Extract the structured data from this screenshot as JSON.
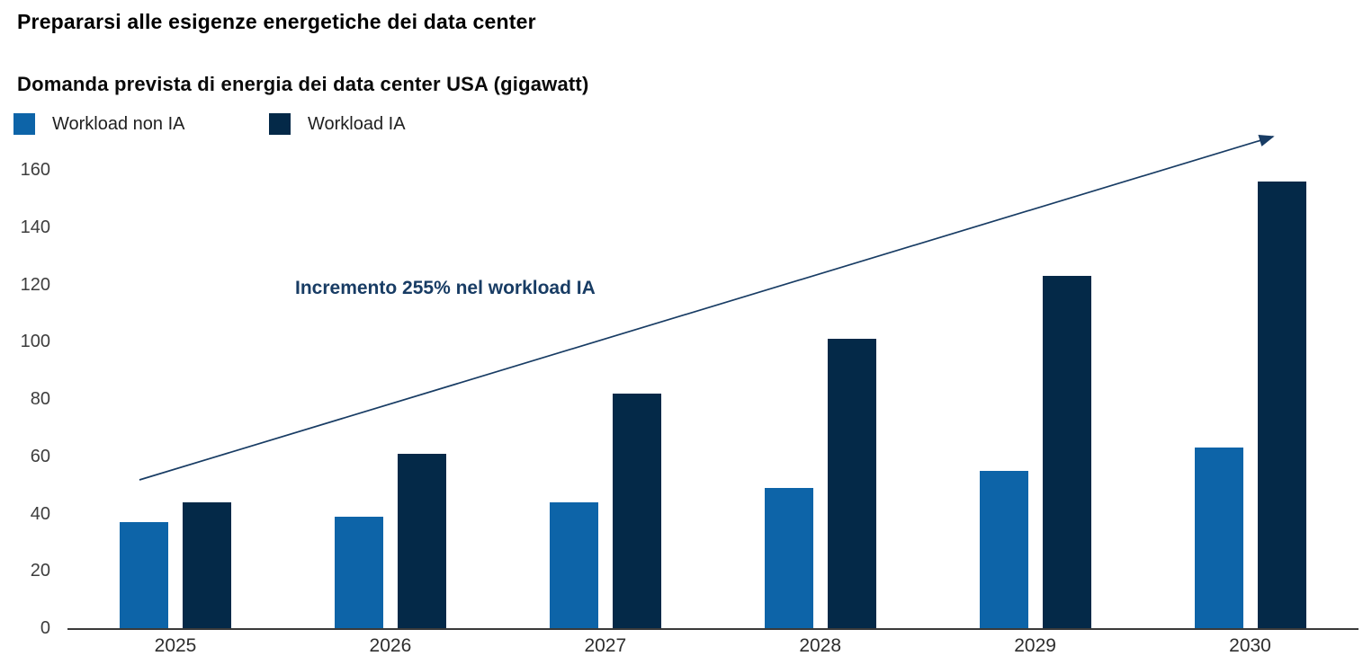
{
  "title": "Prepararsi alle esigenze energetiche dei data center",
  "subtitle": "Domanda prevista di energia dei data center USA (gigawatt)",
  "legend": [
    {
      "label": "Workload non IA",
      "color": "#0d64a8"
    },
    {
      "label": "Workload IA",
      "color": "#042948"
    }
  ],
  "annotation": {
    "text": "Incremento 255% nel workload IA",
    "color": "#183c64",
    "arrow_color": "#183c64"
  },
  "colors": {
    "non_ai_bar": "#0d64a8",
    "ai_bar": "#042948",
    "axis": "#3a3a3a",
    "tick_text": "#3d3d3d",
    "background": "#ffffff"
  },
  "chart_data": {
    "type": "bar",
    "title": "Prepararsi alle esigenze energetiche dei data center",
    "subtitle": "Domanda prevista di energia dei data center USA (gigawatt)",
    "categories": [
      "2025",
      "2026",
      "2027",
      "2028",
      "2029",
      "2030"
    ],
    "series": [
      {
        "name": "Workload non IA",
        "color": "#0d64a8",
        "values": [
          37,
          39,
          44,
          49,
          55,
          63
        ]
      },
      {
        "name": "Workload IA",
        "color": "#042948",
        "values": [
          44,
          61,
          82,
          101,
          123,
          156
        ]
      }
    ],
    "xlabel": "",
    "ylabel": "gigawatt",
    "ylim": [
      0,
      160
    ],
    "yticks": [
      0,
      20,
      40,
      60,
      80,
      100,
      120,
      140,
      160
    ],
    "grid": false,
    "legend_position": "top-left",
    "annotation": "Incremento 255% nel workload IA"
  }
}
